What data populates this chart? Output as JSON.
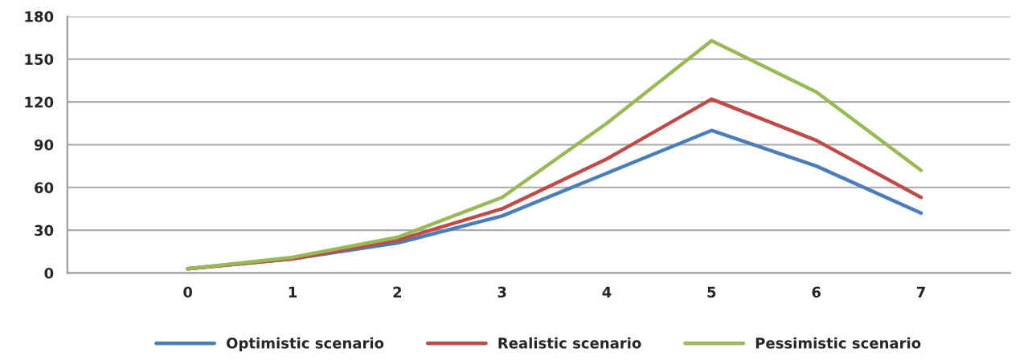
{
  "chart_data": {
    "type": "line",
    "categories": [
      "0",
      "1",
      "2",
      "3",
      "4",
      "5",
      "6",
      "7"
    ],
    "series": [
      {
        "name": "Optimistic scenario",
        "color": "#4a7ebb",
        "values": [
          3,
          10,
          21,
          40,
          70,
          100,
          75,
          42
        ]
      },
      {
        "name": "Realistic scenario",
        "color": "#be4b48",
        "values": [
          3,
          10,
          23,
          45,
          80,
          122,
          93,
          53
        ]
      },
      {
        "name": "Pessimistic scenario",
        "color": "#98b954",
        "values": [
          3,
          11,
          25,
          53,
          105,
          163,
          127,
          72
        ]
      }
    ],
    "ylim": [
      0,
      180
    ],
    "yticks": [
      0,
      30,
      60,
      90,
      120,
      150,
      180
    ],
    "grid": "y",
    "legend": "bottom",
    "marker": "none",
    "line_style": "solid"
  }
}
